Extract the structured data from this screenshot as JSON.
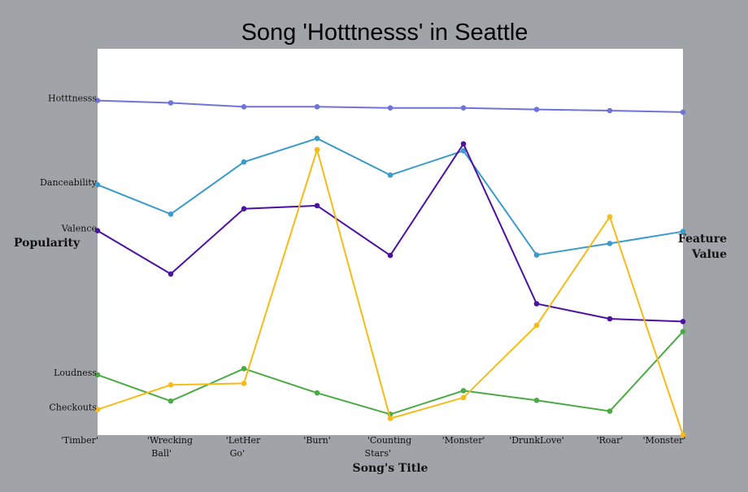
{
  "chart_data": {
    "type": "line",
    "title": "Song 'Hotttnesss' in Seattle",
    "xlabel": "Song's Title",
    "ylabel_left": "Popularity",
    "ylabel_right": [
      "Feature",
      "Value"
    ],
    "categories": [
      [
        "'Timber'"
      ],
      [
        "'Wrecking",
        "Ball'"
      ],
      [
        "'LetHer",
        "Go'"
      ],
      [
        "'Burn'"
      ],
      [
        "'Counting",
        "Stars'"
      ],
      [
        "'Monster'"
      ],
      [
        "'DrunkLove'"
      ],
      [
        "'Roar'"
      ],
      [
        "'Monster'"
      ]
    ],
    "ylim": [
      0,
      100
    ],
    "grid": false,
    "series": [
      {
        "name": "Hotttnesss",
        "color": "#6f74d8",
        "values": [
          86.6,
          86.0,
          85.0,
          85.0,
          84.7,
          84.7,
          84.3,
          84.0,
          83.6
        ]
      },
      {
        "name": "Danceability",
        "color": "#3b9bcc",
        "values": [
          64.8,
          57.2,
          70.7,
          76.8,
          67.3,
          73.6,
          46.6,
          49.6,
          52.7
        ]
      },
      {
        "name": "Valence",
        "color": "#4c12a1",
        "values": [
          52.9,
          41.7,
          58.6,
          59.4,
          46.5,
          75.4,
          34.0,
          30.1,
          29.4
        ]
      },
      {
        "name": "Loudness",
        "color": "#4aab44",
        "values": [
          15.6,
          8.8,
          17.2,
          10.9,
          5.4,
          11.5,
          9.0,
          6.2,
          26.8
        ]
      },
      {
        "name": "Checkouts",
        "color": "#f6bb16",
        "values": [
          6.6,
          13.0,
          13.4,
          73.9,
          4.3,
          9.7,
          28.4,
          56.5,
          0.0
        ]
      }
    ]
  }
}
